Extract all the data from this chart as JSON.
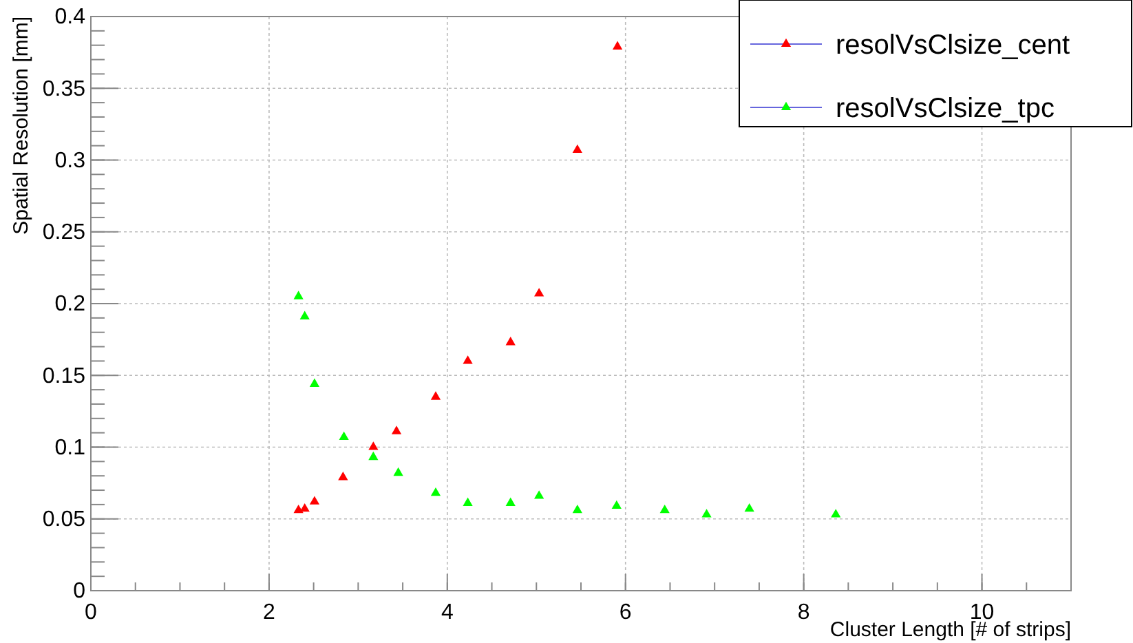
{
  "chart_data": {
    "type": "scatter",
    "xlabel": "Cluster Length [# of strips]",
    "ylabel": "Spatial Resolution [mm]",
    "xlim": [
      0,
      11
    ],
    "xticks": [
      0,
      2,
      4,
      6,
      8,
      10
    ],
    "ylim": [
      0,
      0.4
    ],
    "yticks": [
      0,
      0.05,
      0.1,
      0.15,
      0.2,
      0.25,
      0.3,
      0.35,
      0.4
    ],
    "grid": true,
    "legend": "top right",
    "marker": "triangle",
    "series": [
      {
        "name": "resolVsClsize_cent",
        "color": "#ff0000",
        "x": [
          2.33,
          2.4,
          2.51,
          2.83,
          3.17,
          3.43,
          3.87,
          4.23,
          4.71,
          5.03,
          5.46,
          5.91
        ],
        "values": [
          0.056,
          0.057,
          0.062,
          0.079,
          0.1,
          0.111,
          0.135,
          0.16,
          0.173,
          0.207,
          0.307,
          0.379
        ]
      },
      {
        "name": "resolVsClsize_tpc",
        "color": "#00ff00",
        "x": [
          2.33,
          2.4,
          2.51,
          2.84,
          3.17,
          3.45,
          3.87,
          4.23,
          4.71,
          5.03,
          5.46,
          5.9,
          6.44,
          6.91,
          7.39,
          8.36
        ],
        "values": [
          0.205,
          0.191,
          0.144,
          0.107,
          0.093,
          0.082,
          0.068,
          0.061,
          0.061,
          0.066,
          0.056,
          0.059,
          0.056,
          0.053,
          0.057,
          0.053
        ]
      }
    ]
  }
}
